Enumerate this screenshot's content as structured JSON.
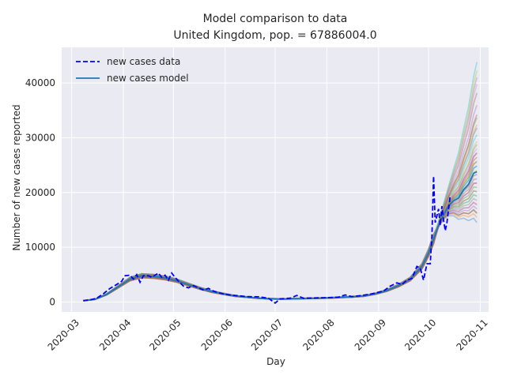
{
  "chart_data": {
    "type": "line",
    "title": "Model comparison to data",
    "subtitle": "United Kingdom, pop. = 67886004.0",
    "xlabel": "Day",
    "ylabel": "Number of new cases reported",
    "x_ticks": [
      "2020-03",
      "2020-04",
      "2020-05",
      "2020-06",
      "2020-07",
      "2020-08",
      "2020-09",
      "2020-10",
      "2020-11"
    ],
    "y_ticks": [
      0,
      10000,
      20000,
      30000,
      40000
    ],
    "x_range": [
      "2020-02-24",
      "2020-11-06"
    ],
    "ylim": [
      -1800,
      46500
    ],
    "grid": true,
    "legend_position": "top-left",
    "legend": [
      {
        "label": "new cases data",
        "style": "dashed",
        "color": "#0000ff"
      },
      {
        "label": "new cases model",
        "style": "solid",
        "color": "#1f77b4"
      }
    ],
    "series": [
      {
        "name": "new cases data",
        "color": "#0000ff",
        "points": [
          [
            "2020-03-08",
            250
          ],
          [
            "2020-03-12",
            400
          ],
          [
            "2020-03-16",
            700
          ],
          [
            "2020-03-20",
            1500
          ],
          [
            "2020-03-24",
            2500
          ],
          [
            "2020-03-28",
            3200
          ],
          [
            "2020-03-31",
            3800
          ],
          [
            "2020-04-02",
            4800
          ],
          [
            "2020-04-05",
            4900
          ],
          [
            "2020-04-07",
            4200
          ],
          [
            "2020-04-09",
            5000
          ],
          [
            "2020-04-11",
            3600
          ],
          [
            "2020-04-13",
            4800
          ],
          [
            "2020-04-16",
            4800
          ],
          [
            "2020-04-18",
            4500
          ],
          [
            "2020-04-20",
            4900
          ],
          [
            "2020-04-22",
            5300
          ],
          [
            "2020-04-24",
            4500
          ],
          [
            "2020-04-26",
            4900
          ],
          [
            "2020-04-28",
            4000
          ],
          [
            "2020-04-30",
            5300
          ],
          [
            "2020-05-02",
            4500
          ],
          [
            "2020-05-05",
            3500
          ],
          [
            "2020-05-07",
            2900
          ],
          [
            "2020-05-10",
            2600
          ],
          [
            "2020-05-13",
            3000
          ],
          [
            "2020-05-16",
            2600
          ],
          [
            "2020-05-19",
            2200
          ],
          [
            "2020-05-22",
            2500
          ],
          [
            "2020-05-25",
            2000
          ],
          [
            "2020-05-28",
            1700
          ],
          [
            "2020-06-01",
            1400
          ],
          [
            "2020-06-07",
            1200
          ],
          [
            "2020-06-14",
            1000
          ],
          [
            "2020-06-21",
            950
          ],
          [
            "2020-06-27",
            700
          ],
          [
            "2020-07-01",
            -200
          ],
          [
            "2020-07-04",
            600
          ],
          [
            "2020-07-10",
            700
          ],
          [
            "2020-07-14",
            1200
          ],
          [
            "2020-07-18",
            700
          ],
          [
            "2020-07-25",
            750
          ],
          [
            "2020-08-01",
            800
          ],
          [
            "2020-08-08",
            900
          ],
          [
            "2020-08-12",
            1300
          ],
          [
            "2020-08-16",
            1000
          ],
          [
            "2020-08-22",
            1200
          ],
          [
            "2020-08-28",
            1500
          ],
          [
            "2020-09-04",
            2000
          ],
          [
            "2020-09-08",
            2900
          ],
          [
            "2020-09-12",
            3500
          ],
          [
            "2020-09-15",
            3200
          ],
          [
            "2020-09-18",
            4000
          ],
          [
            "2020-09-21",
            4300
          ],
          [
            "2020-09-24",
            6500
          ],
          [
            "2020-09-26",
            6200
          ],
          [
            "2020-09-28",
            4000
          ],
          [
            "2020-09-30",
            7000
          ],
          [
            "2020-10-02",
            7000
          ],
          [
            "2020-10-03",
            12000
          ],
          [
            "2020-10-04",
            23000
          ],
          [
            "2020-10-05",
            14500
          ],
          [
            "2020-10-07",
            17000
          ],
          [
            "2020-10-08",
            14000
          ],
          [
            "2020-10-09",
            17500
          ],
          [
            "2020-10-10",
            15000
          ],
          [
            "2020-10-11",
            13000
          ],
          [
            "2020-10-12",
            14500
          ],
          [
            "2020-10-14",
            19500
          ]
        ]
      },
      {
        "name": "new cases model",
        "color": "#1f77b4",
        "points": [
          [
            "2020-03-08",
            250
          ],
          [
            "2020-03-15",
            500
          ],
          [
            "2020-03-22",
            1400
          ],
          [
            "2020-03-29",
            2800
          ],
          [
            "2020-04-05",
            4200
          ],
          [
            "2020-04-12",
            4800
          ],
          [
            "2020-04-19",
            4700
          ],
          [
            "2020-04-26",
            4400
          ],
          [
            "2020-05-03",
            3900
          ],
          [
            "2020-05-10",
            3200
          ],
          [
            "2020-05-17",
            2500
          ],
          [
            "2020-05-24",
            1900
          ],
          [
            "2020-05-31",
            1500
          ],
          [
            "2020-06-07",
            1100
          ],
          [
            "2020-06-14",
            900
          ],
          [
            "2020-06-21",
            700
          ],
          [
            "2020-06-28",
            600
          ],
          [
            "2020-07-05",
            550
          ],
          [
            "2020-07-12",
            600
          ],
          [
            "2020-07-19",
            650
          ],
          [
            "2020-07-26",
            700
          ],
          [
            "2020-08-02",
            750
          ],
          [
            "2020-08-09",
            850
          ],
          [
            "2020-08-16",
            950
          ],
          [
            "2020-08-23",
            1100
          ],
          [
            "2020-08-30",
            1500
          ],
          [
            "2020-09-06",
            2100
          ],
          [
            "2020-09-13",
            3000
          ],
          [
            "2020-09-20",
            4200
          ],
          [
            "2020-09-27",
            6500
          ],
          [
            "2020-10-01",
            9000
          ],
          [
            "2020-10-04",
            11500
          ],
          [
            "2020-10-07",
            14000
          ],
          [
            "2020-10-10",
            16000
          ],
          [
            "2020-10-13",
            17500
          ],
          [
            "2020-10-16",
            18500
          ],
          [
            "2020-10-19",
            19000
          ],
          [
            "2020-10-22",
            20500
          ],
          [
            "2020-10-25",
            21500
          ],
          [
            "2020-10-28",
            23500
          ],
          [
            "2020-10-30",
            23800
          ]
        ]
      }
    ],
    "model_ensemble": {
      "count": 40,
      "opacity": 0.35,
      "colors": [
        "#1f77b4",
        "#ff7f0e",
        "#2ca02c",
        "#d62728",
        "#9467bd",
        "#8c564b",
        "#e377c2",
        "#7f7f7f",
        "#bcbd22",
        "#17becf"
      ],
      "end_values": [
        14800,
        15500,
        16000,
        16500,
        17000,
        17500,
        18000,
        18500,
        19000,
        19500,
        20000,
        20500,
        21000,
        21500,
        22000,
        22500,
        23000,
        23500,
        24000,
        24500,
        25000,
        25500,
        26000,
        26500,
        27000,
        27500,
        28000,
        28500,
        29500,
        30500,
        31500,
        32500,
        33500,
        34500,
        36000,
        38000,
        40000,
        41000,
        42000,
        44000
      ]
    }
  }
}
